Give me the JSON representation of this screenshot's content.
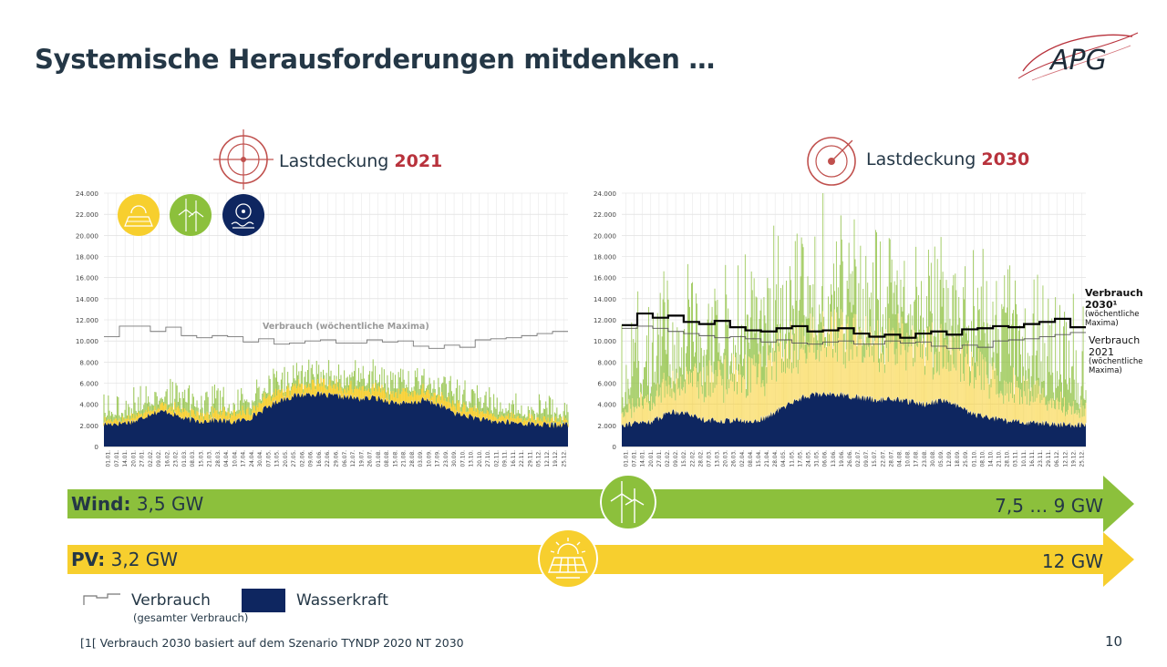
{
  "page": {
    "title": "Systemische Herausforderungen mitdenken …",
    "logo_text": "APG",
    "page_number": "10",
    "footnote": "[1[ Verbrauch 2030 basiert auf dem Szenario TYNDP 2020 NT 2030"
  },
  "colors": {
    "wind": "#8cc03c",
    "pv": "#f7cf2e",
    "hydro": "#0e2660",
    "accent": "#b8323c",
    "consumption": "#555555"
  },
  "header_2021": {
    "prefix": "Lastdeckung ",
    "year": "2021"
  },
  "header_2030": {
    "prefix": "Lastdeckung ",
    "year": "2030"
  },
  "chart_data": [
    {
      "type": "area",
      "series": [
        {
          "name": "Wasserkraft",
          "baseline_profile": [
            2100,
            2200,
            2400,
            3200,
            3300,
            2600,
            2400,
            2500,
            2300,
            2600,
            3500,
            4400,
            4800,
            5000,
            4800,
            4700,
            4500,
            4600,
            4200,
            4000,
            4400,
            3900,
            3100,
            2800,
            2400,
            2300,
            2200,
            2100,
            2000,
            2100
          ]
        },
        {
          "name": "Verbrauch",
          "weekly_max": [
            10400,
            11400,
            11400,
            10900,
            11300,
            10500,
            10300,
            10500,
            10400,
            9900,
            10200,
            9700,
            9800,
            10000,
            10100,
            9800,
            9800,
            10100,
            9900,
            10000,
            9500,
            9300,
            9600,
            9400,
            10100,
            10200,
            10300,
            10500,
            10700,
            10900
          ]
        }
      ],
      "icons": [
        "pv-icon",
        "wind-icon",
        "hydro-icon"
      ],
      "x_ticks": [
        "01.01.",
        "07.01.",
        "14.01.",
        "20.01.",
        "27.01.",
        "02.02.",
        "09.02.",
        "16.02.",
        "23.02.",
        "01.03.",
        "08.03.",
        "15.03.",
        "21.03.",
        "28.03.",
        "04.04.",
        "10.04.",
        "17.04.",
        "24.04.",
        "30.04.",
        "07.05.",
        "13.05.",
        "20.05.",
        "27.05.",
        "02.06.",
        "09.06.",
        "16.06.",
        "22.06.",
        "29.06.",
        "06.07.",
        "12.07.",
        "19.07.",
        "26.07.",
        "01.08.",
        "08.08.",
        "15.08.",
        "21.08.",
        "28.08.",
        "03.09.",
        "10.09.",
        "17.09.",
        "23.09.",
        "30.09.",
        "07.10.",
        "13.10.",
        "20.10.",
        "27.10.",
        "02.11.",
        "09.11.",
        "16.11.",
        "22.11.",
        "29.11.",
        "05.12.",
        "12.12.",
        "19.12.",
        "25.12."
      ],
      "y_ticks": [
        "0",
        "2.000",
        "4.000",
        "6.000",
        "8.000",
        "10.000",
        "12.000",
        "14.000",
        "16.000",
        "18.000",
        "20.000",
        "22.000",
        "24.000"
      ],
      "ylim": [
        0,
        24000
      ],
      "annotation": "Verbrauch (wöchentliche Maxima)"
    },
    {
      "type": "area",
      "series": [
        {
          "name": "Wasserkraft",
          "baseline_profile": [
            2100,
            2200,
            2400,
            3300,
            3200,
            2600,
            2400,
            2500,
            2300,
            2700,
            3600,
            4500,
            4900,
            5000,
            4800,
            4600,
            4400,
            4500,
            4200,
            4000,
            4400,
            3800,
            3000,
            2700,
            2400,
            2300,
            2200,
            2100,
            2000,
            2100
          ]
        },
        {
          "name": "Verbrauch 2030",
          "weekly_max": [
            11500,
            12600,
            12200,
            12400,
            11800,
            11600,
            11900,
            11300,
            11000,
            10900,
            11200,
            11400,
            10900,
            11000,
            11200,
            10700,
            10400,
            10600,
            10300,
            10700,
            10900,
            10600,
            11100,
            11200,
            11400,
            11300,
            11600,
            11800,
            12100,
            11300
          ]
        },
        {
          "name": "Verbrauch 2021",
          "weekly_max": [
            11200,
            11400,
            11200,
            10900,
            10700,
            10500,
            10300,
            10400,
            10200,
            9900,
            10100,
            9800,
            9700,
            9900,
            10000,
            9700,
            9700,
            10000,
            9800,
            9900,
            9500,
            9300,
            9600,
            9400,
            10000,
            10100,
            10200,
            10400,
            10600,
            10800
          ]
        }
      ],
      "x_ticks": [
        "01.01.",
        "07.01.",
        "14.01.",
        "20.01.",
        "27.01.",
        "02.02.",
        "09.02.",
        "15.02.",
        "22.02.",
        "28.02.",
        "07.03.",
        "13.03.",
        "20.03.",
        "26.03.",
        "02.04.",
        "08.04.",
        "15.04.",
        "21.04.",
        "28.04.",
        "04.05.",
        "11.05.",
        "17.05.",
        "24.05.",
        "31.05.",
        "06.06.",
        "13.06.",
        "19.06.",
        "26.06.",
        "02.07.",
        "09.07.",
        "15.07.",
        "22.07.",
        "28.07.",
        "04.08.",
        "10.08.",
        "17.08.",
        "23.08.",
        "30.08.",
        "05.09.",
        "12.09.",
        "18.09.",
        "25.09.",
        "01.10.",
        "08.10.",
        "14.10.",
        "21.10.",
        "28.10.",
        "03.11.",
        "10.11.",
        "16.11.",
        "23.11.",
        "29.11.",
        "06.12.",
        "12.12.",
        "19.12.",
        "25.12."
      ],
      "y_ticks": [
        "0",
        "2.000",
        "4.000",
        "6.000",
        "8.000",
        "10.000",
        "12.000",
        "14.000",
        "16.000",
        "18.000",
        "20.000",
        "22.000",
        "24.000"
      ],
      "ylim": [
        0,
        24000
      ],
      "annotations": [
        {
          "title": "Verbrauch 2030¹",
          "sub": "(wöchentliche Maxima)"
        },
        {
          "title": "Verbrauch 2021",
          "sub": "(wöchentliche Maxima)"
        }
      ]
    }
  ],
  "arrows": {
    "wind": {
      "label": "Wind:",
      "from": " 3,5 GW",
      "to": "7,5 … 9 GW"
    },
    "pv": {
      "label": "PV:",
      "from": " 3,2 GW",
      "to": "12 GW"
    }
  },
  "legend": {
    "verbrauch": "Verbrauch",
    "verbrauch_sub": "(gesamter Verbrauch)",
    "wasserkraft": "Wasserkraft"
  }
}
